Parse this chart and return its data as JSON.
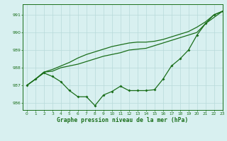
{
  "title": "Graphe pression niveau de la mer (hPa)",
  "background_color": "#d8f0f0",
  "grid_color": "#b8dada",
  "line_color": "#1a6e1a",
  "xlim": [
    -0.5,
    23
  ],
  "ylim": [
    985.6,
    991.6
  ],
  "yticks": [
    986,
    987,
    988,
    989,
    990,
    991
  ],
  "xticks": [
    0,
    1,
    2,
    3,
    4,
    5,
    6,
    7,
    8,
    9,
    10,
    11,
    12,
    13,
    14,
    15,
    16,
    17,
    18,
    19,
    20,
    21,
    22,
    23
  ],
  "series1": [
    987.0,
    987.35,
    987.7,
    987.5,
    987.2,
    986.7,
    986.35,
    986.35,
    985.85,
    986.45,
    986.65,
    986.95,
    986.7,
    986.7,
    986.7,
    986.75,
    987.35,
    988.1,
    988.5,
    989.0,
    989.85,
    990.5,
    991.0,
    991.2
  ],
  "series2": [
    987.0,
    987.35,
    987.75,
    987.8,
    988.0,
    988.1,
    988.2,
    988.35,
    988.5,
    988.65,
    988.75,
    988.85,
    989.0,
    989.05,
    989.1,
    989.25,
    989.4,
    989.55,
    989.7,
    989.85,
    990.0,
    990.5,
    990.85,
    991.2
  ],
  "series3": [
    987.0,
    987.35,
    987.75,
    987.9,
    988.1,
    988.3,
    988.55,
    988.75,
    988.9,
    989.05,
    989.2,
    989.3,
    989.4,
    989.45,
    989.45,
    989.5,
    989.6,
    989.75,
    989.9,
    990.05,
    990.3,
    990.6,
    991.0,
    991.2
  ]
}
